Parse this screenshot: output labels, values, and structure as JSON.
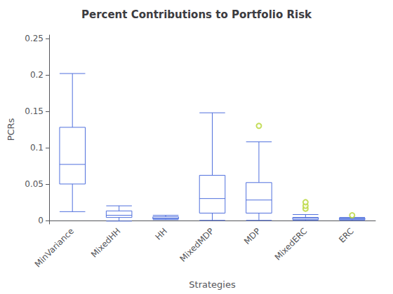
{
  "chart_data": {
    "type": "box",
    "title": "Percent Contributions to Portfolio Risk",
    "xlabel": "Strategies",
    "ylabel": "PCRs",
    "categories": [
      "MinVariance",
      "MixedHH",
      "HH",
      "MixedMDP",
      "MDP",
      "MixedERC",
      "ERC"
    ],
    "boxes": [
      {
        "whislo": 0.012,
        "q1": 0.05,
        "med": 0.077,
        "q3": 0.128,
        "whishi": 0.202,
        "fliers": []
      },
      {
        "whislo": -0.001,
        "q1": 0.004,
        "med": 0.007,
        "q3": 0.013,
        "whishi": 0.02,
        "fliers": []
      },
      {
        "whislo": 0.001,
        "q1": 0.002,
        "med": 0.003,
        "q3": 0.005,
        "whishi": 0.007,
        "fliers": []
      },
      {
        "whislo": 0.0,
        "q1": 0.01,
        "med": 0.03,
        "q3": 0.062,
        "whishi": 0.148,
        "fliers": []
      },
      {
        "whislo": 0.0,
        "q1": 0.01,
        "med": 0.028,
        "q3": 0.052,
        "whishi": 0.108,
        "fliers": [
          0.13
        ]
      },
      {
        "whislo": 0.0,
        "q1": 0.001,
        "med": 0.003,
        "q3": 0.004,
        "whishi": 0.008,
        "fliers": [
          0.016,
          0.02,
          0.025
        ]
      },
      {
        "whislo": 0.0,
        "q1": 0.001,
        "med": 0.002,
        "q3": 0.003,
        "whishi": 0.004,
        "fliers": [
          0.007
        ]
      }
    ],
    "ylim": [
      -0.005,
      0.255
    ],
    "yticks": [
      0,
      0.05,
      0.1,
      0.15,
      0.2,
      0.25
    ],
    "grid": false
  }
}
